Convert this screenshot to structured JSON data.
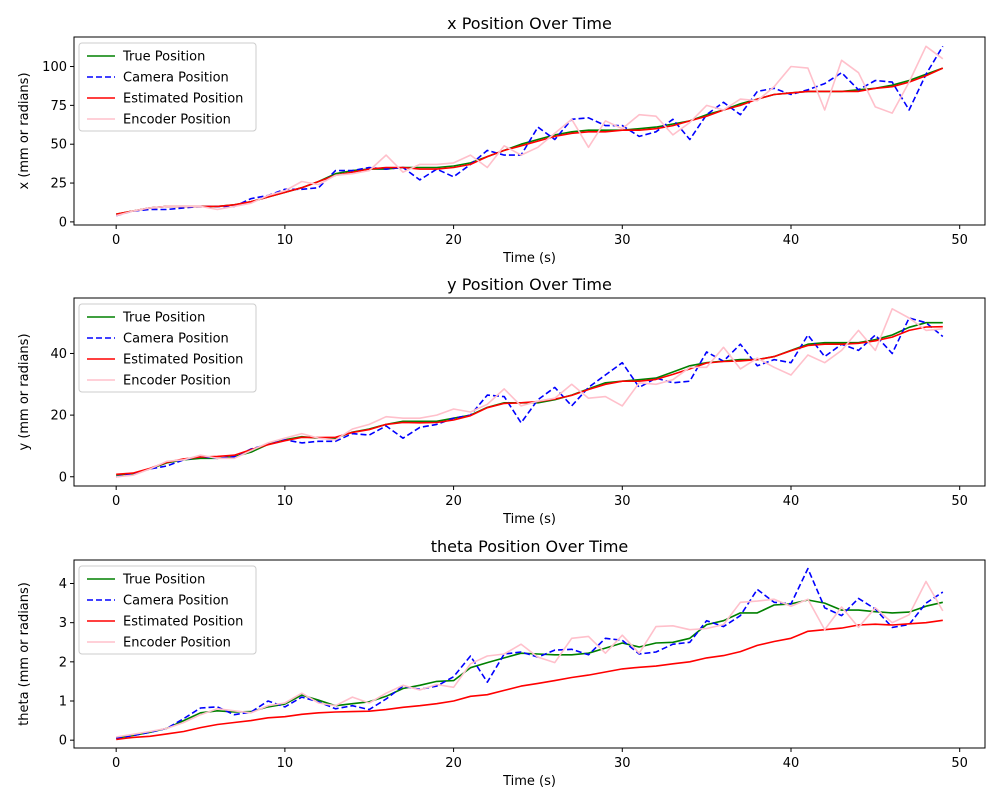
{
  "legend": {
    "labels": [
      "True Position",
      "Camera Position",
      "Estimated Position",
      "Encoder Position"
    ]
  },
  "series_styles": [
    {
      "name": "True Position",
      "color": "#008000",
      "dash": "solid"
    },
    {
      "name": "Camera Position",
      "color": "#0000ff",
      "dash": "dashed"
    },
    {
      "name": "Estimated Position",
      "color": "#ff0000",
      "dash": "solid"
    },
    {
      "name": "Encoder Position",
      "color": "#ffc0cb",
      "dash": "solid"
    }
  ],
  "chart_data": [
    {
      "type": "line",
      "title": "x Position Over Time",
      "xlabel": "Time (s)",
      "ylabel": "x (mm or radians)",
      "xlim": [
        -2.5,
        51.5
      ],
      "ylim": [
        -2,
        119
      ],
      "xticks": [
        0,
        10,
        20,
        30,
        40,
        50
      ],
      "yticks": [
        0,
        25,
        50,
        75,
        100
      ],
      "legend_position": "upper left",
      "x": [
        0,
        1,
        2,
        3,
        4,
        5,
        6,
        7,
        8,
        9,
        10,
        11,
        12,
        13,
        14,
        15,
        16,
        17,
        18,
        19,
        20,
        21,
        22,
        23,
        24,
        25,
        26,
        27,
        28,
        29,
        30,
        31,
        32,
        33,
        34,
        35,
        36,
        37,
        38,
        39,
        40,
        41,
        42,
        43,
        44,
        45,
        46,
        47,
        48,
        49
      ],
      "series": [
        {
          "name": "True Position",
          "values": [
            5,
            7,
            9,
            10,
            10,
            10,
            10,
            11,
            13,
            16,
            19,
            22,
            26,
            31,
            33,
            34,
            34,
            35,
            35,
            35,
            36,
            38,
            42,
            46,
            50,
            53,
            56,
            58,
            59,
            59,
            59,
            60,
            61,
            63,
            65,
            69,
            72,
            76,
            79,
            82,
            83,
            84,
            84,
            84,
            85,
            86,
            88,
            91,
            95,
            99
          ]
        },
        {
          "name": "Camera Position",
          "values": [
            4,
            7,
            8,
            8,
            9,
            10,
            10,
            10,
            15,
            17,
            21,
            21,
            22,
            33,
            33,
            35,
            34,
            35,
            27,
            34,
            29,
            37,
            46,
            43,
            43,
            61,
            53,
            66,
            67,
            62,
            62,
            55,
            58,
            66,
            53,
            69,
            77,
            69,
            84,
            86,
            82,
            85,
            89,
            96,
            85,
            91,
            90,
            72,
            95,
            113
          ]
        },
        {
          "name": "Estimated Position",
          "values": [
            5,
            7,
            9,
            10,
            10,
            10,
            10,
            11,
            13,
            16,
            19,
            22,
            26,
            30,
            32,
            34,
            35,
            35,
            34,
            34,
            35,
            37,
            42,
            46,
            49,
            52,
            55,
            57,
            58,
            58,
            59,
            59,
            60,
            62,
            65,
            68,
            72,
            75,
            79,
            82,
            83,
            84,
            84,
            84,
            84,
            86,
            87,
            90,
            94,
            99
          ]
        },
        {
          "name": "Encoder Position",
          "values": [
            4,
            7,
            9,
            10,
            10,
            10,
            8,
            10,
            12,
            17,
            20,
            26,
            24,
            30,
            31,
            33,
            43,
            32,
            37,
            37,
            38,
            43,
            35,
            49,
            43,
            48,
            57,
            66,
            48,
            65,
            60,
            69,
            68,
            56,
            64,
            75,
            72,
            79,
            78,
            87,
            100,
            99,
            72,
            104,
            96,
            74,
            70,
            90,
            113,
            105
          ]
        }
      ]
    },
    {
      "type": "line",
      "title": "y Position Over Time",
      "xlabel": "Time (s)",
      "ylabel": "y (mm or radians)",
      "xlim": [
        -2.5,
        51.5
      ],
      "ylim": [
        -3,
        58
      ],
      "xticks": [
        0,
        10,
        20,
        30,
        40,
        50
      ],
      "yticks": [
        0,
        20,
        40
      ],
      "legend_position": "upper left",
      "x": [
        0,
        1,
        2,
        3,
        4,
        5,
        6,
        7,
        8,
        9,
        10,
        11,
        12,
        13,
        14,
        15,
        16,
        17,
        18,
        19,
        20,
        21,
        22,
        23,
        24,
        25,
        26,
        27,
        28,
        29,
        30,
        31,
        32,
        33,
        34,
        35,
        36,
        37,
        38,
        39,
        40,
        41,
        42,
        43,
        44,
        45,
        46,
        47,
        48,
        49
      ],
      "series": [
        {
          "name": "True Position",
          "values": [
            0.5,
            1,
            2.5,
            4.5,
            5.5,
            6,
            6,
            6.5,
            8,
            10.5,
            12,
            13,
            12.5,
            12.5,
            14.5,
            15.5,
            17,
            18,
            18,
            18,
            19,
            20,
            22.5,
            24,
            24,
            24,
            25,
            26.5,
            28.5,
            30.5,
            31,
            31.5,
            32,
            34,
            36,
            37,
            37.5,
            38,
            38,
            39,
            41,
            43,
            43.5,
            43.5,
            43.5,
            44.5,
            46,
            48.5,
            50,
            50
          ]
        },
        {
          "name": "Camera Position",
          "values": [
            0,
            1,
            2.5,
            3.5,
            5.5,
            6.5,
            6,
            6.5,
            9,
            10.5,
            12,
            11,
            11.5,
            11.5,
            14,
            13.5,
            16.5,
            12.5,
            16,
            17,
            19,
            20,
            26.5,
            26,
            17.5,
            25,
            29,
            23,
            29,
            33,
            37,
            29,
            32,
            30.5,
            31,
            40.5,
            37.5,
            43,
            36,
            38,
            37,
            46,
            39,
            43,
            41,
            46,
            40,
            51.5,
            50,
            45.5
          ]
        },
        {
          "name": "Estimated Position",
          "values": [
            0.8,
            1.2,
            2.7,
            4.7,
            5.8,
            6.4,
            6.6,
            7,
            8.8,
            10.4,
            11.7,
            12.8,
            12.7,
            12.8,
            14.4,
            15.3,
            17,
            17.6,
            17.5,
            17.6,
            18.4,
            19.8,
            22.4,
            23.8,
            24,
            24.4,
            25.2,
            26.4,
            28.3,
            30,
            31,
            31,
            31.6,
            33.2,
            35,
            36.9,
            37.4,
            37.6,
            38,
            39,
            40.9,
            42.6,
            43,
            43,
            43.3,
            44.1,
            45.3,
            47.5,
            48.6,
            48.7
          ]
        },
        {
          "name": "Encoder Position",
          "values": [
            0,
            0.5,
            2.5,
            5,
            5.5,
            7,
            6,
            6,
            8.5,
            11,
            12.5,
            14,
            12.5,
            12,
            15.5,
            17,
            19.5,
            19,
            19,
            20,
            22,
            21,
            23.5,
            28.5,
            23,
            24.5,
            25.5,
            30,
            25.5,
            26,
            23,
            30.5,
            30,
            31.5,
            35.5,
            35.5,
            42,
            35,
            38.5,
            35.5,
            33,
            39.5,
            37,
            41,
            47.5,
            41,
            54.5,
            51.5,
            47.5,
            48
          ]
        }
      ]
    },
    {
      "type": "line",
      "title": "theta Position Over Time",
      "xlabel": "Time (s)",
      "ylabel": "theta (mm or radians)",
      "xlim": [
        -2.5,
        51.5
      ],
      "ylim": [
        -0.2,
        4.6
      ],
      "xticks": [
        0,
        10,
        20,
        30,
        40,
        50
      ],
      "yticks": [
        0,
        1,
        2,
        3,
        4
      ],
      "legend_position": "upper left",
      "x": [
        0,
        1,
        2,
        3,
        4,
        5,
        6,
        7,
        8,
        9,
        10,
        11,
        12,
        13,
        14,
        15,
        16,
        17,
        18,
        19,
        20,
        21,
        22,
        23,
        24,
        25,
        26,
        27,
        28,
        29,
        30,
        31,
        32,
        33,
        34,
        35,
        36,
        37,
        38,
        39,
        40,
        41,
        42,
        43,
        44,
        45,
        46,
        47,
        48,
        49
      ],
      "series": [
        {
          "name": "True Position",
          "values": [
            0.05,
            0.12,
            0.2,
            0.3,
            0.5,
            0.7,
            0.75,
            0.72,
            0.73,
            0.85,
            0.92,
            1.15,
            1.02,
            0.88,
            0.93,
            0.98,
            1.12,
            1.32,
            1.4,
            1.5,
            1.52,
            1.85,
            1.98,
            2.1,
            2.22,
            2.2,
            2.18,
            2.18,
            2.22,
            2.35,
            2.48,
            2.38,
            2.48,
            2.5,
            2.6,
            2.95,
            3.05,
            3.25,
            3.25,
            3.45,
            3.48,
            3.58,
            3.5,
            3.32,
            3.32,
            3.28,
            3.25,
            3.27,
            3.42,
            3.52
          ]
        },
        {
          "name": "Camera Position",
          "values": [
            0.05,
            0.12,
            0.2,
            0.3,
            0.55,
            0.82,
            0.85,
            0.65,
            0.72,
            1,
            0.85,
            1.1,
            0.98,
            0.8,
            0.88,
            0.78,
            1.05,
            1.38,
            1.3,
            1.38,
            1.62,
            2.15,
            1.48,
            2.2,
            2.25,
            2.12,
            2.3,
            2.32,
            2.18,
            2.6,
            2.55,
            2.2,
            2.25,
            2.45,
            2.5,
            3.05,
            2.9,
            3.18,
            3.85,
            3.52,
            3.48,
            4.38,
            3.38,
            3.18,
            3.62,
            3.35,
            2.88,
            2.95,
            3.5,
            3.78
          ]
        },
        {
          "name": "Estimated Position",
          "values": [
            0.02,
            0.07,
            0.1,
            0.16,
            0.22,
            0.32,
            0.4,
            0.45,
            0.5,
            0.57,
            0.6,
            0.66,
            0.7,
            0.72,
            0.73,
            0.74,
            0.78,
            0.84,
            0.88,
            0.93,
            1,
            1.12,
            1.16,
            1.27,
            1.38,
            1.45,
            1.52,
            1.6,
            1.66,
            1.74,
            1.82,
            1.86,
            1.89,
            1.95,
            2,
            2.1,
            2.16,
            2.26,
            2.42,
            2.52,
            2.6,
            2.78,
            2.82,
            2.86,
            2.94,
            2.96,
            2.94,
            2.97,
            3,
            3.06
          ]
        },
        {
          "name": "Encoder Position",
          "values": [
            0.08,
            0.15,
            0.22,
            0.3,
            0.45,
            0.65,
            0.8,
            0.75,
            0.7,
            0.88,
            0.95,
            1.2,
            0.95,
            0.88,
            1.1,
            0.95,
            1.2,
            1.4,
            1.28,
            1.42,
            1.35,
            1.95,
            2.15,
            2.2,
            2.45,
            2.12,
            1.98,
            2.6,
            2.65,
            2.22,
            2.68,
            2.22,
            2.9,
            2.92,
            2.82,
            2.85,
            2.95,
            3.52,
            3.55,
            3.6,
            3.42,
            3.6,
            2.82,
            3.4,
            2.88,
            3.38,
            3,
            3.2,
            4.05,
            3.3
          ]
        }
      ]
    }
  ]
}
